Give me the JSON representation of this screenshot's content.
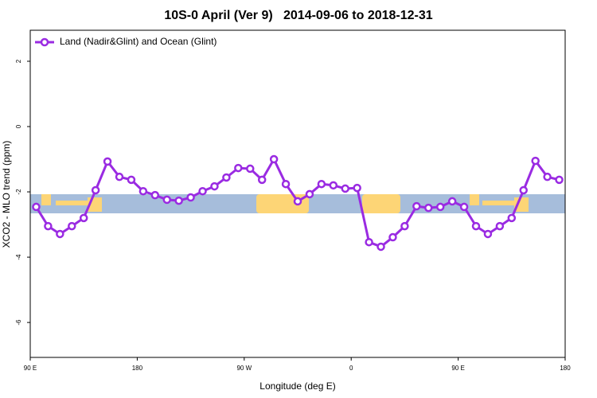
{
  "chart_data": {
    "type": "line",
    "title": "10S-0 April (Ver 9)   2014-09-06 to 2018-12-31",
    "x_label": "Longitude (deg E)",
    "y_label": "XCO2 - MLO trend (ppm)",
    "x": [
      95,
      105,
      115,
      125,
      135,
      145,
      155,
      165,
      175,
      185,
      195,
      205,
      215,
      225,
      235,
      245,
      255,
      265,
      275,
      285,
      295,
      305,
      315,
      325,
      335,
      345,
      355,
      365,
      375,
      385,
      395,
      405,
      415,
      425,
      435,
      445,
      455,
      465,
      475,
      485,
      495,
      505,
      515,
      525,
      535
    ],
    "series": [
      {
        "name": "Land (Nadir&Glint) and Ocean (Glint)",
        "color": "#9a2be2",
        "values": [
          -2.46,
          -3.05,
          -3.29,
          -3.05,
          -2.8,
          -1.95,
          -1.07,
          -1.54,
          -1.63,
          -1.98,
          -2.1,
          -2.24,
          -2.27,
          -2.17,
          -1.98,
          -1.83,
          -1.56,
          -1.27,
          -1.29,
          -1.63,
          -1.0,
          -1.76,
          -2.29,
          -2.07,
          -1.76,
          -1.8,
          -1.9,
          -1.88,
          -3.54,
          -3.68,
          -3.39,
          -3.05,
          -2.44,
          -2.49,
          -2.46,
          -2.29,
          -2.46,
          -3.05,
          -3.29,
          -3.05,
          -2.8,
          -1.95,
          -1.05,
          -1.54,
          -1.63
        ]
      }
    ],
    "xlim": [
      90,
      540
    ],
    "xticks": [
      {
        "value": 90,
        "label": "90 E"
      },
      180,
      {
        "value": 270,
        "label": "90 W"
      },
      {
        "value": 360,
        "label": "0"
      },
      {
        "value": 450,
        "label": "90 E"
      },
      {
        "value": 540,
        "label": "180"
      }
    ],
    "ylim": [
      -7.07,
      2.95
    ],
    "yticks": [
      -6,
      -4,
      -2,
      0,
      2
    ],
    "legend": "top-left"
  }
}
